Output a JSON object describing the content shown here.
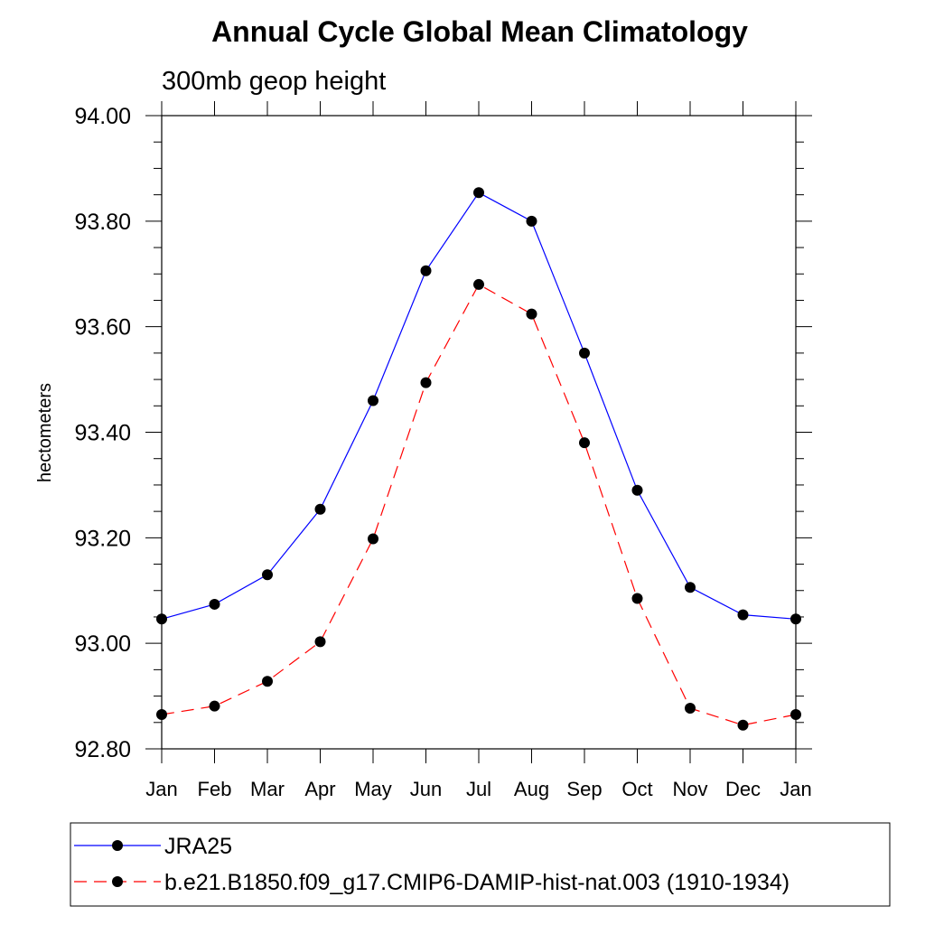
{
  "chart_data": {
    "type": "line",
    "title": "Annual Cycle Global Mean Climatology",
    "subtitle": "300mb geop height",
    "xlabel": "",
    "ylabel": "hectometers",
    "categories": [
      "Jan",
      "Feb",
      "Mar",
      "Apr",
      "May",
      "Jun",
      "Jul",
      "Aug",
      "Sep",
      "Oct",
      "Nov",
      "Dec",
      "Jan"
    ],
    "ylim": [
      92.8,
      94.0
    ],
    "ytick_values": [
      92.8,
      93.0,
      93.2,
      93.4,
      93.6,
      93.8,
      94.0
    ],
    "ytick_labels": [
      "92.80",
      "93.00",
      "93.20",
      "93.40",
      "93.60",
      "93.80",
      "94.00"
    ],
    "grid": false,
    "legend_position": "bottom",
    "series": [
      {
        "name": "JRA25",
        "color": "#0000ff",
        "line_style": "solid",
        "marker": "filled-circle",
        "values": [
          93.046,
          93.074,
          93.13,
          93.254,
          93.46,
          93.706,
          93.854,
          93.8,
          93.55,
          93.29,
          93.106,
          93.054,
          93.046
        ]
      },
      {
        "name": "b.e21.B1850.f09_g17.CMIP6-DAMIP-hist-nat.003 (1910-1934)",
        "color": "#ff0000",
        "line_style": "dashed",
        "marker": "filled-circle",
        "values": [
          92.865,
          92.881,
          92.928,
          93.003,
          93.198,
          93.494,
          93.68,
          93.624,
          93.38,
          93.085,
          92.877,
          92.845,
          92.865
        ]
      }
    ]
  }
}
